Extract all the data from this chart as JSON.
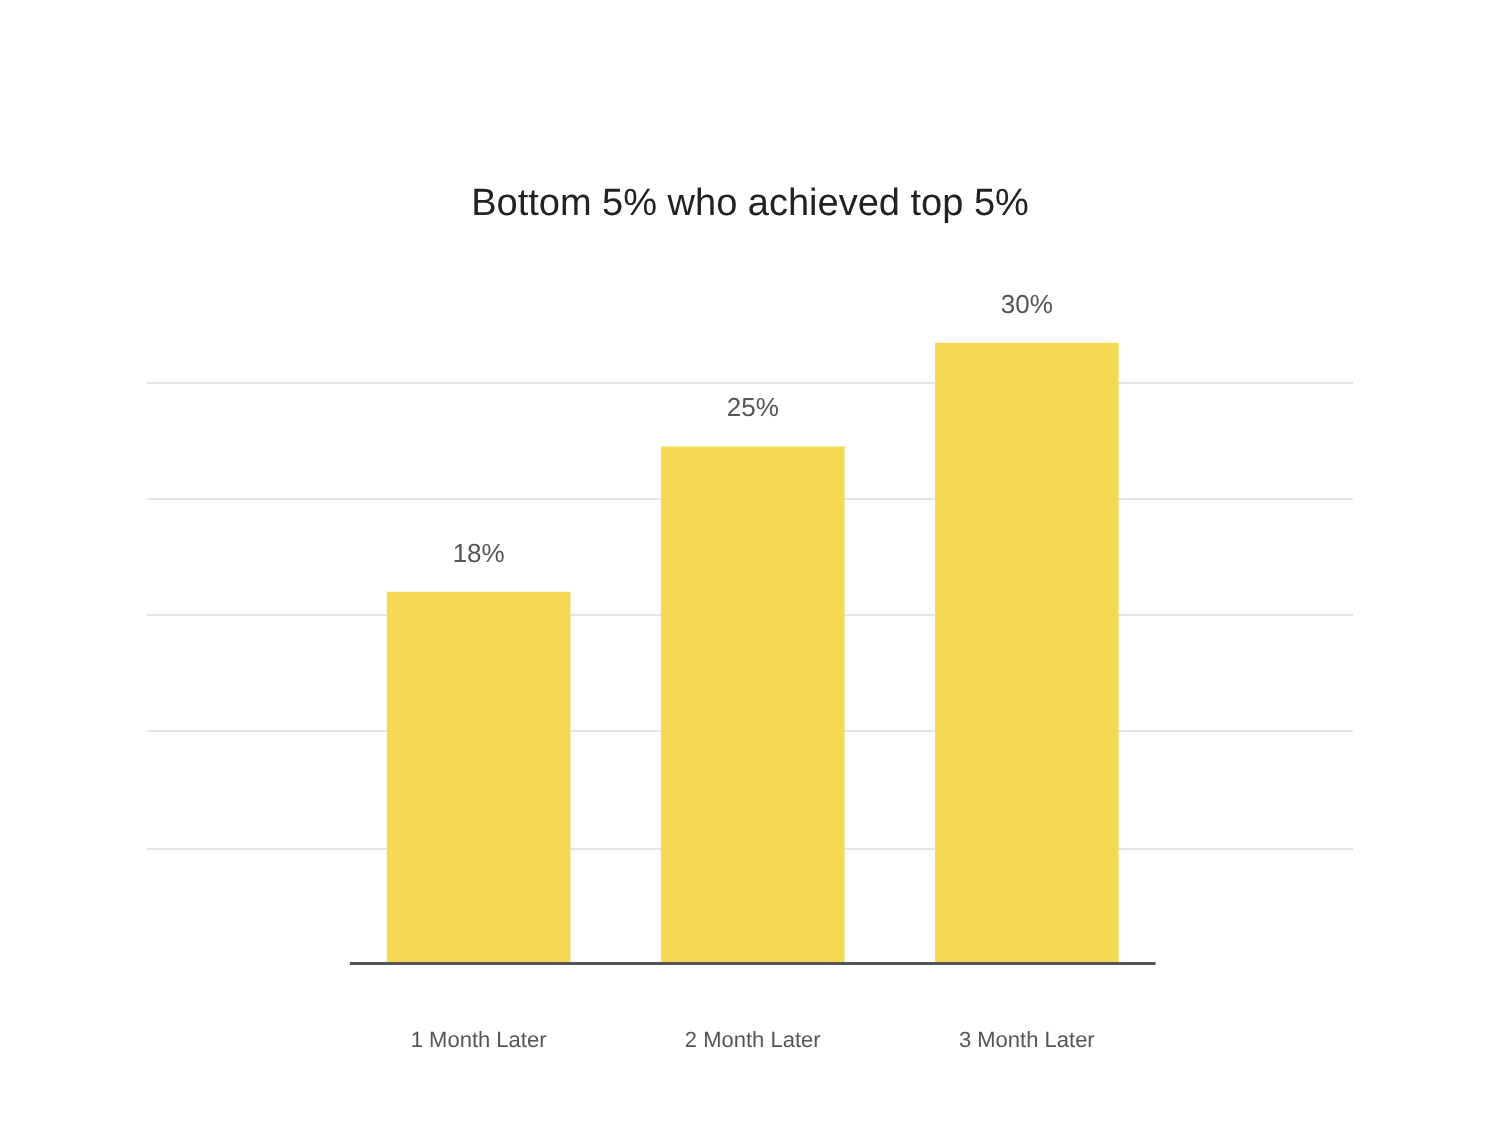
{
  "chart_data": {
    "type": "bar",
    "title": "Bottom 5% who achieved top 5%",
    "categories": [
      "1 Month Later",
      "2 Month Later",
      "3 Month Later"
    ],
    "values": [
      18,
      25,
      30
    ],
    "color": "#f5d955",
    "value_labels": [
      "18%",
      "25%",
      "30%"
    ],
    "yticks": [
      {
        "value": 5.6,
        "label": null
      },
      {
        "value": 11.3,
        "label": null
      },
      {
        "value": 16.9,
        "label": null
      },
      {
        "value": 22.5,
        "label": null
      },
      {
        "value": 28.1,
        "label": null
      }
    ],
    "tick_labels": "x",
    "grid": "y"
  }
}
